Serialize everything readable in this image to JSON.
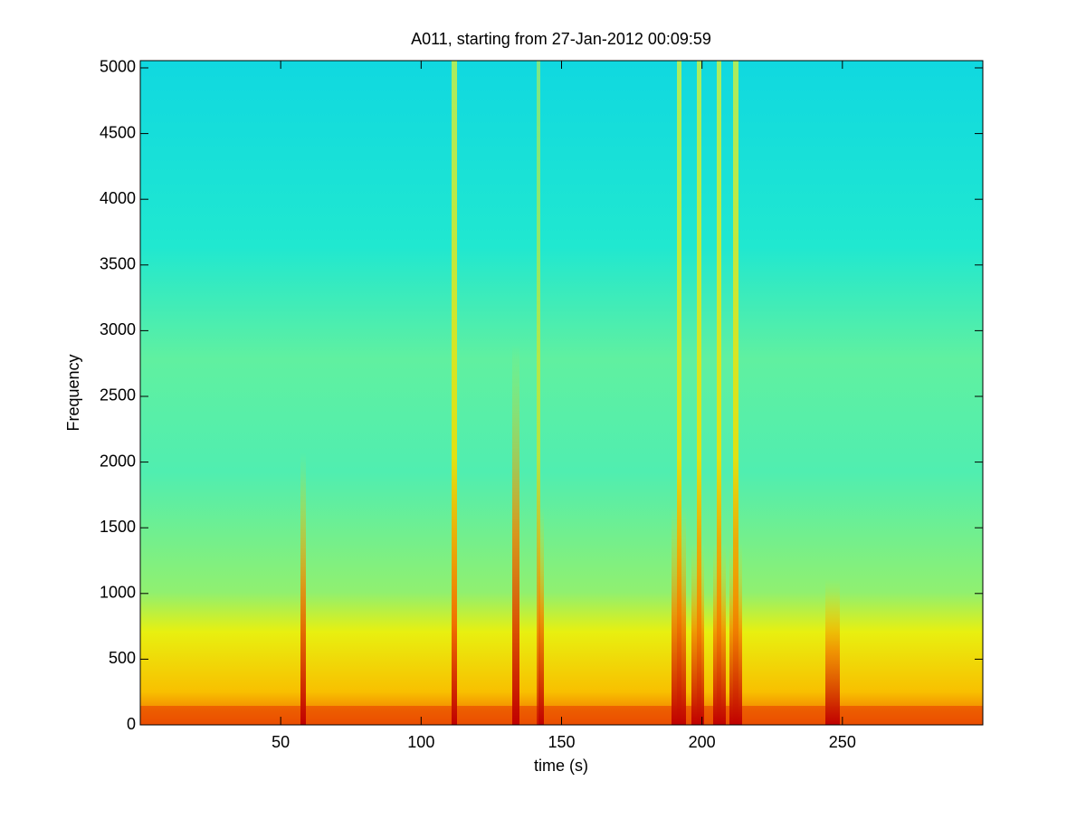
{
  "chart_data": {
    "type": "spectrogram",
    "title": "A011, starting from 27-Jan-2012 00:09:59",
    "x_label": "time (s)",
    "y_label": "Frequency",
    "xlim": [
      0,
      300
    ],
    "ylim": [
      0,
      5055
    ],
    "xticks": [
      50,
      100,
      150,
      200,
      250
    ],
    "yticks": [
      0,
      500,
      1000,
      1500,
      2000,
      2500,
      3000,
      3500,
      4000,
      4500,
      5000
    ]
  }
}
